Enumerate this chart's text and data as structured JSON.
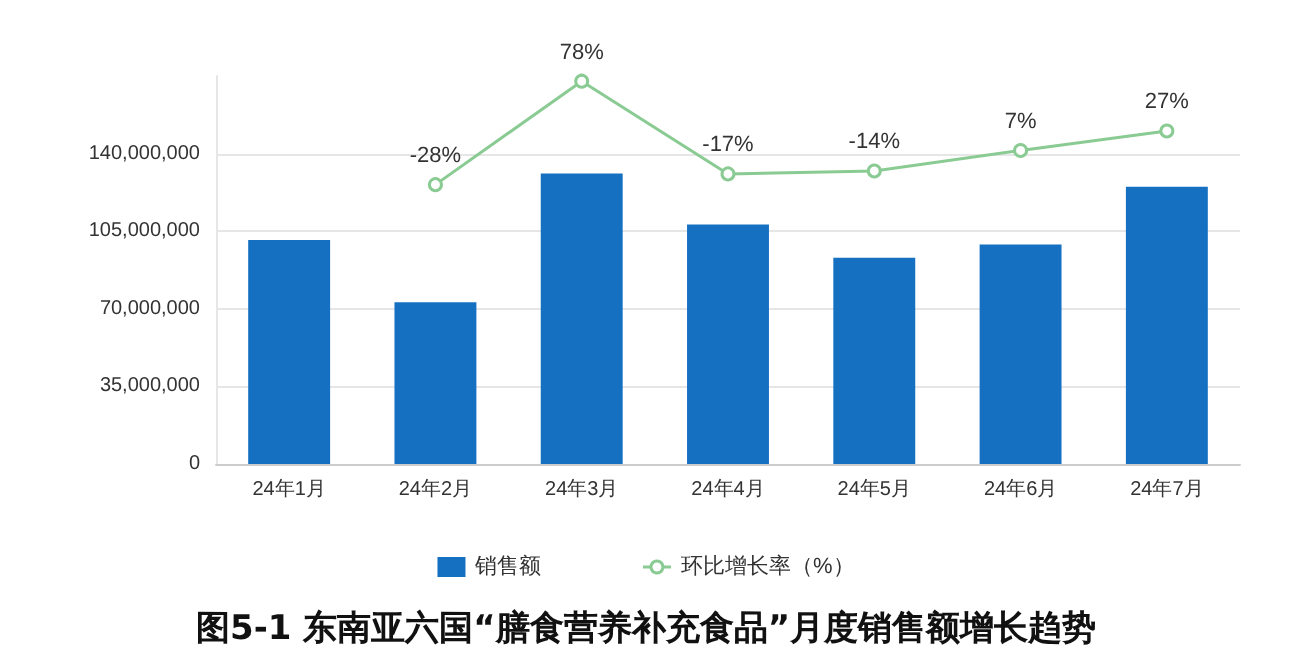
{
  "chart_data": {
    "type": "bar",
    "title": "图5-1 东南亚六国“膳食营养补充食品”月度销售额增长趋势",
    "categories": [
      "24年1月",
      "24年2月",
      "24年3月",
      "24年4月",
      "24年5月",
      "24年6月",
      "24年7月"
    ],
    "series": [
      {
        "name": "销售额",
        "color": "#1670c2",
        "values": [
          101000000,
          73000000,
          131000000,
          108000000,
          93000000,
          99000000,
          125000000
        ]
      },
      {
        "name": "环比增长率（%）",
        "type": "line",
        "axis": "y2",
        "color": "#8acb93",
        "marker": "circle",
        "values": [
          null,
          -28,
          78,
          -17,
          -14,
          7,
          27
        ],
        "value_labels": [
          null,
          "-28%",
          "78%",
          "-17%",
          "-14%",
          "7%",
          "27%"
        ]
      }
    ],
    "ylim": [
      0,
      175000000
    ],
    "yticks": [
      0,
      {
        "value": 35000000,
        "label": "35,000,000"
      },
      {
        "value": 70000000,
        "label": "70,000,000"
      },
      {
        "value": 105000000,
        "label": "105,000,000"
      },
      {
        "value": 140000000,
        "label": "140,000,000"
      }
    ],
    "grid": "y",
    "legend": "bottom"
  }
}
